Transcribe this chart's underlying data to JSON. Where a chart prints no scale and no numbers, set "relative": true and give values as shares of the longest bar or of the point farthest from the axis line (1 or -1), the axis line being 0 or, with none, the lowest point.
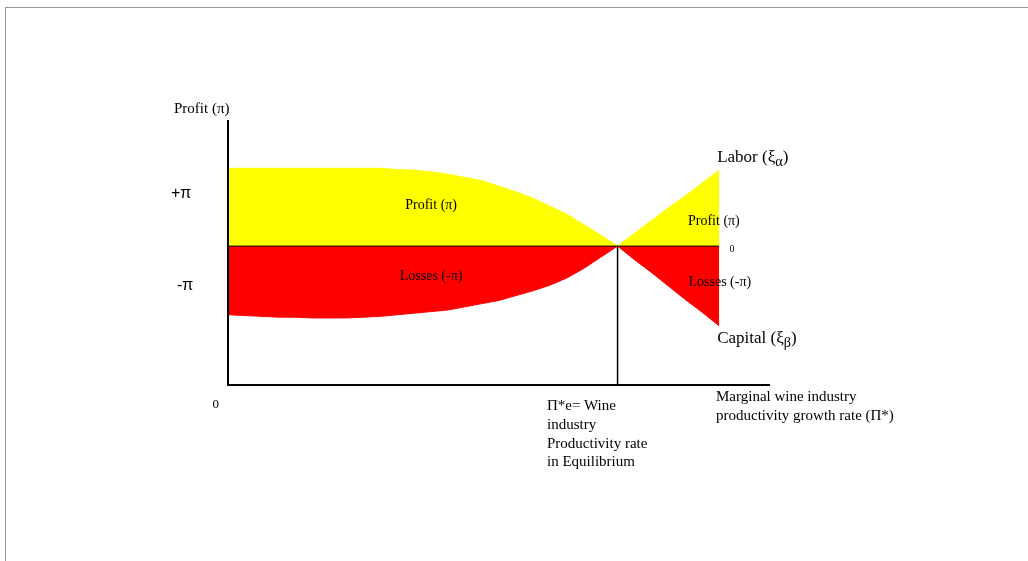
{
  "chart_data": {
    "type": "area",
    "relative": true,
    "ylabel": "Profit (π)",
    "xlabel": "Marginal wine industry productivity growth rate (Π*)",
    "categories": [
      null,
      null,
      null,
      null,
      null,
      null,
      null,
      null,
      null,
      null,
      null,
      null,
      null,
      null,
      null,
      null,
      null,
      null,
      null,
      null,
      null,
      null,
      null,
      null,
      null,
      null,
      null,
      null,
      null,
      null,
      null,
      null,
      null
    ],
    "series": [
      {
        "name": "Profit (π)",
        "color": "#ffff00",
        "values": [
          0.975,
          0.975,
          0.975,
          0.975,
          0.975,
          0.975,
          0.975,
          0.975,
          0.975,
          0.975,
          0.96,
          0.95,
          0.93,
          0.9,
          0.86,
          0.82,
          0.75,
          0.68,
          0.6,
          0.5,
          0.4,
          0.27,
          0.14,
          0,
          null,
          null,
          null,
          null,
          null,
          null,
          null,
          null,
          null
        ]
      },
      {
        "name": "Losses (-π)",
        "color": "#ff0000",
        "values": [
          -0.86,
          -0.87,
          -0.88,
          -0.89,
          -0.89,
          -0.9,
          -0.9,
          -0.9,
          -0.89,
          -0.88,
          -0.86,
          -0.84,
          -0.82,
          -0.8,
          -0.76,
          -0.72,
          -0.68,
          -0.62,
          -0.56,
          -0.49,
          -0.4,
          -0.28,
          -0.14,
          0,
          null,
          null,
          null,
          null,
          null,
          null,
          null,
          null,
          null
        ]
      },
      {
        "name": "Labor (ξ$_{α}$)",
        "color": "#ffff00",
        "values": [
          null,
          null,
          null,
          null,
          null,
          null,
          null,
          null,
          null,
          null,
          null,
          null,
          null,
          null,
          null,
          null,
          null,
          null,
          null,
          null,
          null,
          null,
          null,
          0,
          0.16,
          0.32,
          0.48,
          0.63,
          0.79,
          0.95,
          null,
          null,
          null
        ]
      },
      {
        "name": "Capital (ξ$_{β}$)",
        "color": "#ff0000",
        "values": [
          null,
          null,
          null,
          null,
          null,
          null,
          null,
          null,
          null,
          null,
          null,
          null,
          null,
          null,
          null,
          null,
          null,
          null,
          null,
          null,
          null,
          null,
          null,
          0,
          -0.17,
          -0.33,
          -0.5,
          -0.67,
          -0.83,
          -1,
          null,
          null,
          null
        ]
      }
    ],
    "annotations": [
      "Profit (π)",
      "Losses (-π)",
      "+π",
      "-π",
      "0",
      "0",
      "Π*e= Wine industry Productivity rate in Equilibrium"
    ],
    "legend": false
  }
}
